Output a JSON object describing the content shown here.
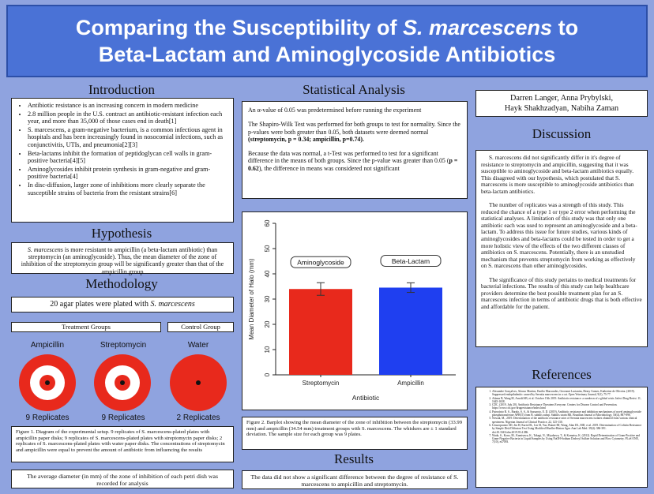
{
  "title": {
    "line1_a": "Comparing the Susceptibility of ",
    "line1_b": "S. marcescens",
    "line1_c": " to",
    "line2": "Beta-Lactam and Aminoglycoside Antibiotics"
  },
  "introduction": {
    "heading": "Introduction",
    "bullets": [
      "Antibiotic resistance is an increasing concern in modern medicine",
      "2.8 million people in the U.S. contract an antibiotic-resistant infection each year, and more than 35,000 of those cases end in death[1]",
      "S. marcescens, a gram-negative bacterium, is a common infectious agent in hospitals and has been increasingly found in nosocomial infections, such as conjunctivitis, UTIs, and pneumonia[2][3]",
      "Beta-lactams inhibit the formation of peptidoglycan cell walls in gram-positive bacteria[4][5]",
      "Aminoglycosides inhibit protein synthesis in gram-negative and gram-positive bacteria[4]",
      "In disc-diffusion, larger zone of inhibitions more clearly separate the susceptible strains of bacteria from the resistant strains[6]"
    ]
  },
  "hypothesis": {
    "heading": "Hypothesis",
    "text_a": "S. marcescens",
    "text_b": " is more resistant to ampicillin (a beta-lactam antibiotic) than streptomycin (an aminoglycoside). Thus, the mean diameter of the zone of inhibition of the streptomycin group will be significantly greater than that of the ampicillin group"
  },
  "methodology": {
    "heading": "Methodology",
    "plates_a": "20 agar plates were plated with ",
    "plates_b": "S. marcescens",
    "treatment_groups": "Treatment Groups",
    "control_group": "Control Group",
    "groups": [
      {
        "name": "Ampicillin",
        "replicates": "9 Replicates"
      },
      {
        "name": "Streptomycin",
        "replicates": "9 Replicates"
      },
      {
        "name": "Water",
        "replicates": "2 Replicates"
      }
    ],
    "figure_caption": "Figure 1. Diagram of the experimental setup. 9 replicates of S. marcescens-plated plates with ampicillin paper disks; 9 replicates of S. marcescens-plated plates with streptomycin paper disks; 2 replicates of S. marcescens-plated plates with water paper disks. The concentrations of streptomycin and ampicillin were equal to prevent the amount of antibiotic from influencing the results",
    "average_note": "The average diameter (in mm) of the zone of inhibition of each petri dish was recorded for analysis"
  },
  "statistical_analysis": {
    "heading": "Statistical Analysis",
    "p1": "An α-value of 0.05 was predetermined before running the experiment",
    "p2_a": "The Shapiro-Wilk Test was performed for both groups to test for normality. Since the p-values were both greater than 0.05, both datasets were deemed normal ",
    "p2_b": "(streptomycin, p = 0.34; ampicillin, p=0.74).",
    "p3_a": "Because the data was normal, a t-Test was performed to test for a significant difference in the means of both groups. Since the p-value was greater than 0.05 (",
    "p3_b": "p = 0.62",
    "p3_c": "), the difference in means was considered not significant"
  },
  "chart_data": {
    "type": "bar",
    "categories": [
      "Streptomycin",
      "Ampicillin"
    ],
    "values": [
      33.99,
      34.54
    ],
    "errors": [
      2.5,
      1.9
    ],
    "bar_labels": [
      "Aminoglycoside",
      "Beta-Lactam"
    ],
    "colors": [
      "#e8291c",
      "#1f3ff0"
    ],
    "xlabel": "Antibiotic",
    "ylabel": "Mean Diameter of Halo (mm)",
    "ylim": [
      0,
      60
    ],
    "yticks": [
      "0",
      "10",
      "20",
      "30",
      "40",
      "50",
      "60"
    ],
    "grid": false
  },
  "figure2_caption": "Figure 2. Barplot showing the mean diameter of the zone of inhibition between the streptomycin (33.99 mm) and ampicillin (34.54 mm) treatment groups with S. marcescens. The whiskers are ± 1 standard deviation. The sample size for each group was 9 plates.",
  "results": {
    "heading": "Results",
    "text": "The data did not show a significant difference between the degree of resistance of S. marcescens to ampicillin and streptomycin."
  },
  "authors": {
    "line1": "Darren Langer, Anna Prybylski,",
    "line2": "Hayk Shakhzadyan, Nabiha Zaman"
  },
  "discussion": {
    "heading": "Discussion",
    "p1": "S. marcescens did not significantly differ in it's degree of resistance to streptomycin and ampicillin, suggesting that it was susceptible to aminoglycoside and beta-lactam antibiotics equally. This disagreed with our hypothesis, which postulated that S. marcescens is more susceptible to aminoglycoside antibiotics than beta-lactam antibiotics.",
    "p2": "The number of replicates was a strength of this study. This reduced the chance of a type 1 or type 2 error when performing the statistical analyses. A limitation of this study was that only one antibiotic each was used to represent an aminoglycoside and a beta-lactam. To address this issue for future studies, various kinds of aminoglycosides and beta-lactams could be tested in order to get a more holistic view of the effects of the two different classes of antibiotics on S. marcescens. Potentially, there is an unstudied mechanism that prevents streptomycin from working as effectively on S. marcescens than other aminoglycosides.",
    "p3": "The significance of this study pertains to medical treatments for bacterial infections. The results of this study can help healthcare providers determine the best possible treatment plan for an S. marcescens infection in terms of antibiotic drugs that is both effective and affordable for the patient."
  },
  "references": {
    "heading": "References",
    "items": [
      "Alexandre Gonçalves, Afonso Martins, Emilio Marcondes, Giovanni Lucianim, Henry Gomes, Katherine de Oliveira. (2019). Suppressed endopthalmitic caused by Serratia marcescens in a cat. Open Veterinary Journal, 9(1), 75-77.",
      "Adams B, Wang M, Arnold SB, et al. October 15th 2019. Antibiotic resistance: a rundown of a global crisis. Infect Drug Resist. 11, 1645-1658.",
      "CDC. (2019, July 20). Antibiotic Resistance Threatens Everyone. Centers for Disease Control and Prevention. https://www.cdc.gov/drugresistance/index.html",
      "Patrocínio R. S., Baralo, S. S., & Sassaroto, E. D. (2019). Antibiotic resistance and inhibition mechanisms of novel aminoglycoside phosphotransferase APH(3') from B. subtilis subsp. Subtilis strain RK. Brazilian Journal of Microbiology, 50(4), 887-898.",
      "Nowak, M., 2019. Determination of the antibiotic resistance rates of Serratia marcescens isolates obtained from various clinical specimens. Nigerian Journal of Clinical Practice, 22, 125-130.",
      "Ussuropraneo SD, Jen H, Karin DL, Lin SI, Yao, Bianei HJ, Wang, Alan DL, MD, et al. 2019. Determination of Colistin Resistance by Simple Disk Diffusion Test Using Modified Mueller-Hinton Agar. Ann Lab Med. 39(4): 386-391. doi:10.3343/alm.2019.39.4.386.",
      "Wada, S., Kono, M., Kamisawa, K., Takagi, N., Miyakawa, T., & Komatsu, K. (2012). Rapid Determination of Gram-Positive and Gram-Negative Bacteria in Liquid Samples by Using NaOH-Sodium Dodecyl Sulfate Solution and Flow Cytometry. PLoS ONE, 7(10), e47093."
    ]
  }
}
